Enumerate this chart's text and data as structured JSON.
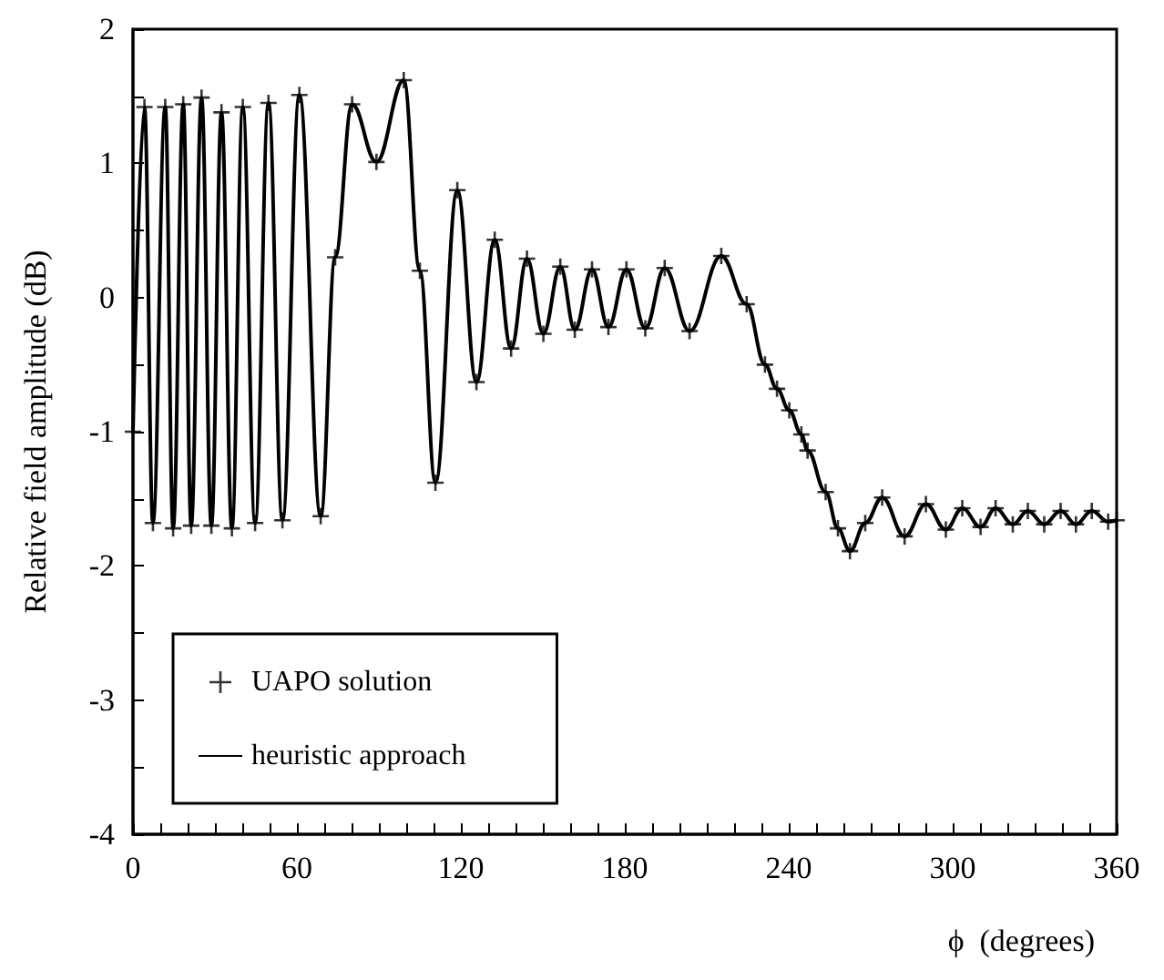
{
  "chart_data": {
    "type": "line",
    "xlabel": "ϕ  (degrees)",
    "ylabel": "Relative field amplitude (dB)",
    "xlim": [
      0,
      360
    ],
    "ylim": [
      -4,
      2
    ],
    "xticks": [
      0,
      {
        "value": 10,
        "label": null
      },
      {
        "value": 20,
        "label": null
      },
      {
        "value": 30,
        "label": null
      },
      {
        "value": 40,
        "label": null
      },
      {
        "value": 50,
        "label": null
      },
      60,
      {
        "value": 70,
        "label": null
      },
      {
        "value": 80,
        "label": null
      },
      {
        "value": 90,
        "label": null
      },
      {
        "value": 100,
        "label": null
      },
      {
        "value": 110,
        "label": null
      },
      120,
      {
        "value": 130,
        "label": null
      },
      {
        "value": 140,
        "label": null
      },
      {
        "value": 150,
        "label": null
      },
      {
        "value": 160,
        "label": null
      },
      {
        "value": 170,
        "label": null
      },
      180,
      {
        "value": 190,
        "label": null
      },
      {
        "value": 200,
        "label": null
      },
      {
        "value": 210,
        "label": null
      },
      {
        "value": 220,
        "label": null
      },
      {
        "value": 230,
        "label": null
      },
      240,
      {
        "value": 250,
        "label": null
      },
      {
        "value": 260,
        "label": null
      },
      {
        "value": 270,
        "label": null
      },
      {
        "value": 280,
        "label": null
      },
      {
        "value": 290,
        "label": null
      },
      300,
      {
        "value": 310,
        "label": null
      },
      {
        "value": 320,
        "label": null
      },
      {
        "value": 330,
        "label": null
      },
      {
        "value": 340,
        "label": null
      },
      {
        "value": 350,
        "label": null
      },
      360
    ],
    "yticks": [
      -4,
      {
        "value": -3.5,
        "label": null
      },
      -3,
      {
        "value": -2.5,
        "label": null
      },
      -2,
      {
        "value": -1.5,
        "label": null
      },
      -1,
      {
        "value": -0.5,
        "label": null
      },
      0,
      {
        "value": 0.5,
        "label": null
      },
      1,
      {
        "value": 1.5,
        "label": null
      },
      2
    ],
    "legend": "bottom left",
    "grid": false,
    "series": [
      {
        "name": "UAPO solution",
        "type": "scatter",
        "marker": "cross",
        "color": "#000000",
        "x": [
          0,
          4.2,
          7.3,
          11.8,
          14.7,
          18.4,
          21.3,
          25.1,
          28.7,
          32.4,
          36.2,
          40.2,
          44.7,
          49.6,
          54.7,
          60.9,
          68.7,
          74,
          80.2,
          89.1,
          99.1,
          105,
          110.7,
          118.7,
          125.7,
          132.4,
          138.4,
          144.2,
          150.2,
          156.4,
          161.7,
          168,
          174,
          180.6,
          187.5,
          194.6,
          203.7,
          215.3,
          224.6,
          231.3,
          235.7,
          240.2,
          244.6,
          246.9,
          253.5,
          258,
          262.4,
          268,
          274.2,
          282.4,
          290.2,
          297.5,
          303.5,
          310.2,
          315.7,
          322,
          327.5,
          333.5,
          339.5,
          345.1,
          350.9,
          356.9,
          360
        ],
        "values": [
          -1.0,
          1.42,
          -1.68,
          1.42,
          -1.72,
          1.44,
          -1.7,
          1.49,
          -1.7,
          1.38,
          -1.72,
          1.42,
          -1.68,
          1.45,
          -1.66,
          1.51,
          -1.63,
          0.3,
          1.44,
          1.01,
          1.62,
          0.2,
          -1.38,
          0.8,
          -0.63,
          0.43,
          -0.38,
          0.29,
          -0.27,
          0.23,
          -0.24,
          0.21,
          -0.22,
          0.21,
          -0.23,
          0.22,
          -0.25,
          0.31,
          -0.05,
          -0.5,
          -0.68,
          -0.84,
          -1.02,
          -1.14,
          -1.45,
          -1.72,
          -1.89,
          -1.68,
          -1.49,
          -1.78,
          -1.54,
          -1.73,
          -1.57,
          -1.71,
          -1.57,
          -1.69,
          -1.59,
          -1.69,
          -1.59,
          -1.69,
          -1.59,
          -1.67,
          -1.66
        ]
      },
      {
        "name": "heuristic approach",
        "type": "line",
        "marker": "none",
        "line_style": "solid",
        "color": "#000000",
        "x": [
          0,
          4.2,
          7.3,
          11.8,
          14.7,
          18.4,
          21.3,
          25.1,
          28.7,
          32.4,
          36.2,
          40.2,
          44.7,
          49.6,
          54.7,
          60.9,
          68.7,
          74,
          80.2,
          89.1,
          99.1,
          105,
          110.7,
          118.7,
          125.7,
          132.4,
          138.4,
          144.2,
          150.2,
          156.4,
          161.7,
          168,
          174,
          180.6,
          187.5,
          194.6,
          203.7,
          215.3,
          224.6,
          231.3,
          235.7,
          240.2,
          244.6,
          246.9,
          253.5,
          258,
          262.4,
          268,
          274.2,
          282.4,
          290.2,
          297.5,
          303.5,
          310.2,
          315.7,
          322,
          327.5,
          333.5,
          339.5,
          345.1,
          350.9,
          356.9,
          360
        ],
        "values": [
          -1.0,
          1.42,
          -1.68,
          1.42,
          -1.72,
          1.44,
          -1.7,
          1.49,
          -1.7,
          1.38,
          -1.72,
          1.42,
          -1.68,
          1.45,
          -1.66,
          1.51,
          -1.63,
          0.3,
          1.44,
          1.01,
          1.62,
          0.2,
          -1.38,
          0.8,
          -0.63,
          0.43,
          -0.38,
          0.29,
          -0.27,
          0.23,
          -0.24,
          0.21,
          -0.22,
          0.21,
          -0.23,
          0.22,
          -0.25,
          0.31,
          -0.05,
          -0.5,
          -0.68,
          -0.84,
          -1.02,
          -1.14,
          -1.45,
          -1.72,
          -1.89,
          -1.68,
          -1.49,
          -1.78,
          -1.54,
          -1.73,
          -1.57,
          -1.71,
          -1.57,
          -1.69,
          -1.59,
          -1.69,
          -1.59,
          -1.69,
          -1.59,
          -1.67,
          -1.66
        ]
      }
    ]
  }
}
